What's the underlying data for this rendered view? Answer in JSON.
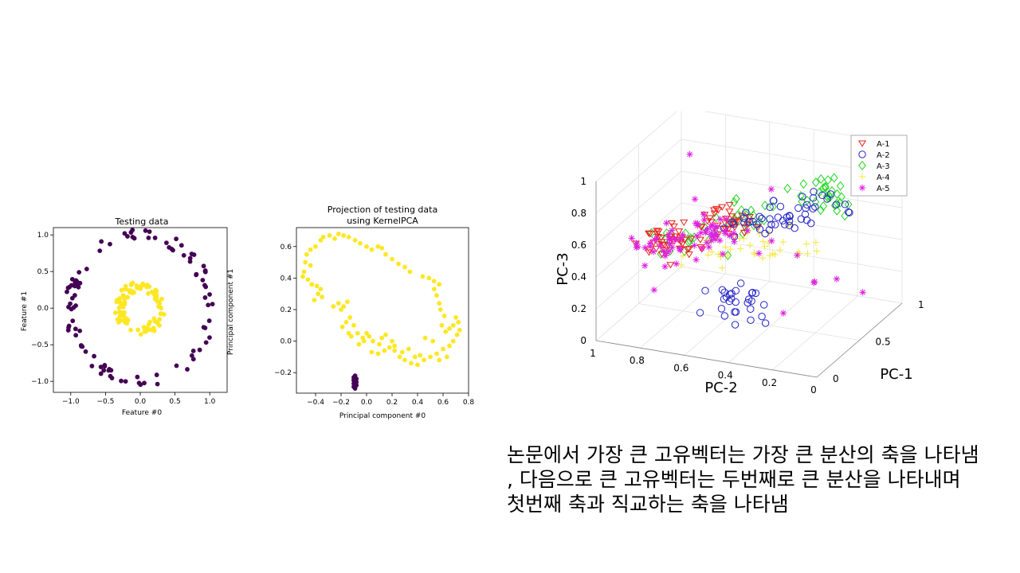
{
  "caption": {
    "line1": "논문에서 가장 큰 고유벡터는 가장 큰 분산의 축을 나타냄",
    "line2": ", 다음으로 큰 고유벡터는 두번째로 큰 분산을 나타내며",
    "line3": "첫번째 축과 직교하는 축을 나타냄"
  },
  "chart_data": [
    {
      "type": "scatter",
      "title": "Testing data",
      "xlabel": "Feature #0",
      "ylabel": "Feature #1",
      "xlim": [
        -1.25,
        1.25
      ],
      "ylim": [
        -1.15,
        1.1
      ],
      "xticks": [
        "−1.0",
        "−0.5",
        "0.0",
        "0.5",
        "1.0"
      ],
      "yticks": [
        "1.0",
        "0.5",
        "0.0",
        "−0.5",
        "−1.0"
      ],
      "series": [
        {
          "color": "#440154",
          "shape": "outer ring",
          "radius": 1.0,
          "n": 100
        },
        {
          "color": "#fde725",
          "shape": "inner ring",
          "radius": 0.3,
          "n": 100
        }
      ]
    },
    {
      "type": "scatter",
      "title": "Projection of testing data using KernelPCA",
      "title_lines": [
        "Projection of testing data",
        "using KernelPCA"
      ],
      "xlabel": "Principal component #0",
      "ylabel": "Principal component #1",
      "xlim": [
        -0.55,
        0.8
      ],
      "ylim": [
        -0.33,
        0.72
      ],
      "xticks": [
        "−0.4",
        "−0.2",
        "0.0",
        "0.2",
        "0.4",
        "0.6",
        "0.8"
      ],
      "yticks": [
        "0.6",
        "0.4",
        "0.2",
        "0.0",
        "−0.2"
      ],
      "series": [
        {
          "color": "#fde725",
          "points": [
            [
              -0.34,
              0.66
            ],
            [
              -0.29,
              0.67
            ],
            [
              -0.25,
              0.65
            ],
            [
              -0.22,
              0.68
            ],
            [
              -0.18,
              0.67
            ],
            [
              -0.14,
              0.66
            ],
            [
              -0.09,
              0.64
            ],
            [
              -0.05,
              0.62
            ],
            [
              0.0,
              0.6
            ],
            [
              0.04,
              0.58
            ],
            [
              0.09,
              0.6
            ],
            [
              0.12,
              0.59
            ],
            [
              0.15,
              0.55
            ],
            [
              0.2,
              0.52
            ],
            [
              0.25,
              0.49
            ],
            [
              0.3,
              0.47
            ],
            [
              0.34,
              0.44
            ],
            [
              -0.36,
              0.64
            ],
            [
              -0.4,
              0.6
            ],
            [
              -0.44,
              0.58
            ],
            [
              -0.47,
              0.55
            ],
            [
              -0.48,
              0.5
            ],
            [
              -0.44,
              0.48
            ],
            [
              -0.49,
              0.44
            ],
            [
              -0.5,
              0.41
            ],
            [
              -0.46,
              0.39
            ],
            [
              -0.43,
              0.36
            ],
            [
              -0.39,
              0.35
            ],
            [
              -0.36,
              0.33
            ],
            [
              -0.38,
              0.3
            ],
            [
              -0.35,
              0.28
            ],
            [
              -0.41,
              0.26
            ],
            [
              -0.26,
              0.22
            ],
            [
              -0.22,
              0.24
            ],
            [
              -0.2,
              0.2
            ],
            [
              -0.18,
              0.22
            ],
            [
              -0.15,
              0.25
            ],
            [
              -0.16,
              0.12
            ],
            [
              -0.13,
              0.15
            ],
            [
              -0.19,
              0.09
            ],
            [
              -0.1,
              0.1
            ],
            [
              -0.12,
              0.03
            ],
            [
              -0.14,
              0.05
            ],
            [
              -0.07,
              0.05
            ],
            [
              -0.03,
              0.02
            ],
            [
              0.0,
              0.05
            ],
            [
              0.02,
              0.03
            ],
            [
              0.05,
              0.0
            ],
            [
              0.1,
              -0.02
            ],
            [
              0.14,
              -0.06
            ],
            [
              0.18,
              -0.04
            ],
            [
              0.22,
              -0.03
            ],
            [
              0.26,
              -0.1
            ],
            [
              0.3,
              -0.12
            ],
            [
              0.35,
              -0.14
            ],
            [
              0.4,
              -0.15
            ],
            [
              0.45,
              -0.12
            ],
            [
              0.5,
              -0.1
            ],
            [
              0.55,
              -0.08
            ],
            [
              0.6,
              -0.05
            ],
            [
              0.65,
              -0.03
            ],
            [
              0.68,
              0.0
            ],
            [
              0.71,
              0.04
            ],
            [
              0.73,
              0.07
            ],
            [
              0.68,
              0.1
            ],
            [
              0.65,
              0.08
            ],
            [
              0.72,
              0.12
            ],
            [
              0.7,
              0.15
            ],
            [
              0.44,
              0.41
            ],
            [
              0.49,
              0.4
            ],
            [
              0.53,
              0.38
            ],
            [
              0.57,
              0.36
            ],
            [
              0.53,
              0.33
            ],
            [
              0.55,
              0.29
            ],
            [
              0.57,
              0.24
            ],
            [
              0.58,
              0.2
            ],
            [
              0.61,
              0.16
            ],
            [
              0.59,
              0.1
            ],
            [
              0.62,
              0.06
            ],
            [
              0.12,
              0.02
            ],
            [
              0.15,
              0.04
            ],
            [
              0.09,
              -0.08
            ],
            [
              0.04,
              -0.07
            ],
            [
              0.22,
              -0.06
            ],
            [
              0.28,
              -0.07
            ],
            [
              0.33,
              -0.05
            ],
            [
              0.42,
              -0.09
            ],
            [
              0.46,
              0.02
            ],
            [
              0.52,
              0.0
            ],
            [
              -0.06,
              -0.02
            ],
            [
              -0.02,
              0.0
            ],
            [
              0.2,
              0.0
            ],
            [
              0.38,
              -0.1
            ],
            [
              0.57,
              -0.12
            ],
            [
              0.63,
              -0.1
            ]
          ]
        },
        {
          "color": "#440154",
          "points": [
            [
              -0.09,
              -0.22
            ],
            [
              -0.1,
              -0.23
            ],
            [
              -0.08,
              -0.24
            ],
            [
              -0.1,
              -0.25
            ],
            [
              -0.09,
              -0.26
            ],
            [
              -0.1,
              -0.27
            ],
            [
              -0.08,
              -0.28
            ],
            [
              -0.09,
              -0.285
            ],
            [
              -0.1,
              -0.29
            ],
            [
              -0.09,
              -0.3
            ],
            [
              -0.08,
              -0.26
            ],
            [
              -0.1,
              -0.245
            ]
          ]
        }
      ]
    },
    {
      "type": "scatter",
      "subtype": "3d",
      "xlabel": "PC-1",
      "ylabel": "PC-2",
      "zlabel": "PC-3",
      "xticks": [
        "0",
        "0.5",
        "1"
      ],
      "yticks": [
        "1",
        "0.8",
        "0.6",
        "0.4",
        "0.2",
        "0"
      ],
      "zticks": [
        "1",
        "0.8",
        "0.6",
        "0.4",
        "0.2",
        "0"
      ],
      "legend_position": "top-right",
      "grid": true,
      "series": [
        {
          "name": "A-1",
          "color": "#e8231c",
          "marker": "triangle-down"
        },
        {
          "name": "A-2",
          "color": "#2424c8",
          "marker": "circle"
        },
        {
          "name": "A-3",
          "color": "#22d622",
          "marker": "diamond"
        },
        {
          "name": "A-4",
          "color": "#f2e83a",
          "marker": "plus"
        },
        {
          "name": "A-5",
          "color": "#e020e0",
          "marker": "asterisk"
        }
      ]
    }
  ]
}
